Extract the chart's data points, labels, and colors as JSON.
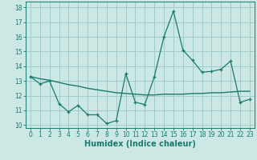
{
  "x": [
    0,
    1,
    2,
    3,
    4,
    5,
    6,
    7,
    8,
    9,
    10,
    11,
    12,
    13,
    14,
    15,
    16,
    17,
    18,
    19,
    20,
    21,
    22,
    23
  ],
  "line1": [
    13.3,
    12.8,
    13.0,
    11.45,
    10.9,
    11.35,
    10.7,
    10.7,
    10.1,
    10.3,
    13.5,
    11.55,
    11.4,
    13.3,
    16.0,
    17.75,
    15.1,
    14.4,
    13.6,
    13.65,
    13.8,
    14.35,
    11.55,
    11.75
  ],
  "line2": [
    13.3,
    13.15,
    13.05,
    12.9,
    12.75,
    12.65,
    12.5,
    12.4,
    12.3,
    12.2,
    12.15,
    12.1,
    12.05,
    12.05,
    12.1,
    12.1,
    12.1,
    12.15,
    12.15,
    12.2,
    12.2,
    12.25,
    12.3,
    12.3
  ],
  "line_color": "#1a7a6e",
  "bg_color": "#cce8e4",
  "grid_color": "#a0ccca",
  "xlabel": "Humidex (Indice chaleur)",
  "ylim": [
    9.8,
    18.4
  ],
  "xlim": [
    -0.5,
    23.5
  ],
  "yticks": [
    10,
    11,
    12,
    13,
    14,
    15,
    16,
    17,
    18
  ],
  "xticks": [
    0,
    1,
    2,
    3,
    4,
    5,
    6,
    7,
    8,
    9,
    10,
    11,
    12,
    13,
    14,
    15,
    16,
    17,
    18,
    19,
    20,
    21,
    22,
    23
  ],
  "tick_fontsize": 5.5,
  "xlabel_fontsize": 7
}
